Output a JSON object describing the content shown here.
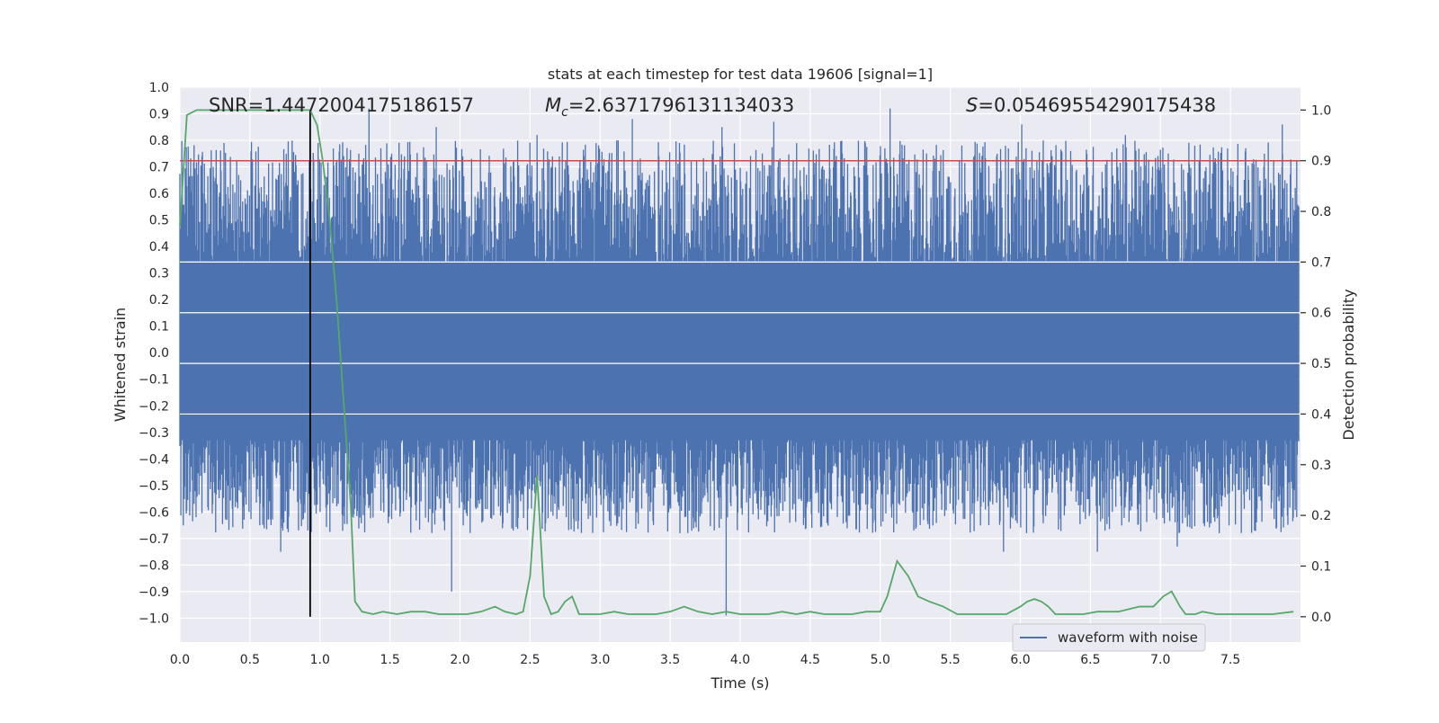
{
  "chart_data": {
    "type": "line",
    "title": "stats at each timestep for test data 19606 [signal=1]",
    "xlabel": "Time (s)",
    "ylabel_left": "Whitened strain",
    "ylabel_right": "Detection probability",
    "xlim": [
      0.0,
      8.0
    ],
    "ylim_left": [
      -1.09,
      1.0
    ],
    "ylim_right": [
      -0.05,
      1.045
    ],
    "grid": true,
    "legend_position": "lower-right",
    "x_ticks": [
      "0.0",
      "0.5",
      "1.0",
      "1.5",
      "2.0",
      "2.5",
      "3.0",
      "3.5",
      "4.0",
      "4.5",
      "5.0",
      "5.5",
      "6.0",
      "6.5",
      "7.0",
      "7.5"
    ],
    "y_left_ticks": [
      "1.0",
      "0.9",
      "0.8",
      "0.7",
      "0.6",
      "0.5",
      "0.4",
      "0.3",
      "0.2",
      "0.1",
      "0.0",
      "−0.1",
      "−0.2",
      "−0.3",
      "−0.4",
      "−0.5",
      "−0.6",
      "−0.7",
      "−0.8",
      "−0.9",
      "−1.0"
    ],
    "y_right_ticks": [
      "1.0",
      "0.9",
      "0.8",
      "0.7",
      "0.6",
      "0.5",
      "0.4",
      "0.3",
      "0.2",
      "0.1",
      "0.0"
    ],
    "annotations": {
      "snr": "SNR=1.4472004175186157",
      "mc_symbol": "M",
      "mc_sub": "c",
      "mc_value": "=2.6371796131134033",
      "s_symbol": "S",
      "s_value": "=0.05469554290175438"
    },
    "threshold": {
      "value": 0.9,
      "axis": "right",
      "color": "#c44e52"
    },
    "vertical_marker": {
      "x": 0.93,
      "color": "#000000"
    },
    "series": [
      {
        "name": "waveform with noise",
        "axis": "left",
        "color": "#4c72b0",
        "band": [
          -0.33,
          0.34
        ],
        "peak_times": [
          1.35,
          1.83,
          2.55,
          3.23,
          3.87,
          4.24,
          5.07,
          6.01,
          6.75,
          7.87
        ],
        "peak_values": [
          0.92,
          0.85,
          0.82,
          0.88,
          0.85,
          0.87,
          0.92,
          0.86,
          0.82,
          0.86
        ],
        "trough_times": [
          0.72,
          1.94,
          3.9,
          5.88,
          6.55,
          7.12
        ],
        "trough_values": [
          -0.75,
          -0.9,
          -0.99,
          -0.75,
          -0.75,
          -0.73
        ]
      },
      {
        "name": "detection probability",
        "axis": "right",
        "color": "#55a868",
        "x": [
          0.0,
          0.05,
          0.12,
          0.3,
          0.5,
          0.7,
          0.85,
          0.93,
          0.98,
          1.02,
          1.07,
          1.12,
          1.17,
          1.22,
          1.25,
          1.3,
          1.38,
          1.45,
          1.55,
          1.65,
          1.75,
          1.85,
          1.95,
          2.05,
          2.15,
          2.25,
          2.32,
          2.4,
          2.45,
          2.5,
          2.55,
          2.6,
          2.65,
          2.7,
          2.75,
          2.8,
          2.85,
          2.92,
          3.0,
          3.1,
          3.2,
          3.3,
          3.4,
          3.5,
          3.6,
          3.7,
          3.8,
          3.9,
          4.0,
          4.1,
          4.2,
          4.3,
          4.4,
          4.5,
          4.6,
          4.7,
          4.8,
          4.9,
          4.95,
          5.0,
          5.05,
          5.12,
          5.2,
          5.27,
          5.35,
          5.45,
          5.55,
          5.6,
          5.7,
          5.8,
          5.9,
          6.0,
          6.05,
          6.1,
          6.15,
          6.2,
          6.25,
          6.35,
          6.45,
          6.55,
          6.7,
          6.85,
          6.95,
          7.02,
          7.08,
          7.14,
          7.18,
          7.25,
          7.3,
          7.4,
          7.5,
          7.6,
          7.8,
          7.95
        ],
        "y": [
          0.77,
          0.99,
          1.0,
          1.0,
          1.0,
          1.0,
          1.0,
          1.0,
          0.97,
          0.9,
          0.78,
          0.62,
          0.42,
          0.22,
          0.03,
          0.01,
          0.005,
          0.01,
          0.005,
          0.01,
          0.01,
          0.005,
          0.005,
          0.005,
          0.01,
          0.02,
          0.01,
          0.005,
          0.01,
          0.08,
          0.28,
          0.04,
          0.005,
          0.01,
          0.03,
          0.04,
          0.005,
          0.005,
          0.005,
          0.01,
          0.005,
          0.005,
          0.005,
          0.01,
          0.02,
          0.01,
          0.005,
          0.01,
          0.005,
          0.005,
          0.005,
          0.01,
          0.005,
          0.01,
          0.005,
          0.005,
          0.005,
          0.01,
          0.01,
          0.01,
          0.04,
          0.11,
          0.08,
          0.04,
          0.03,
          0.02,
          0.005,
          0.005,
          0.005,
          0.005,
          0.005,
          0.02,
          0.03,
          0.035,
          0.03,
          0.02,
          0.005,
          0.005,
          0.005,
          0.01,
          0.01,
          0.02,
          0.02,
          0.04,
          0.05,
          0.02,
          0.005,
          0.005,
          0.01,
          0.005,
          0.005,
          0.005,
          0.005,
          0.01
        ]
      }
    ]
  }
}
